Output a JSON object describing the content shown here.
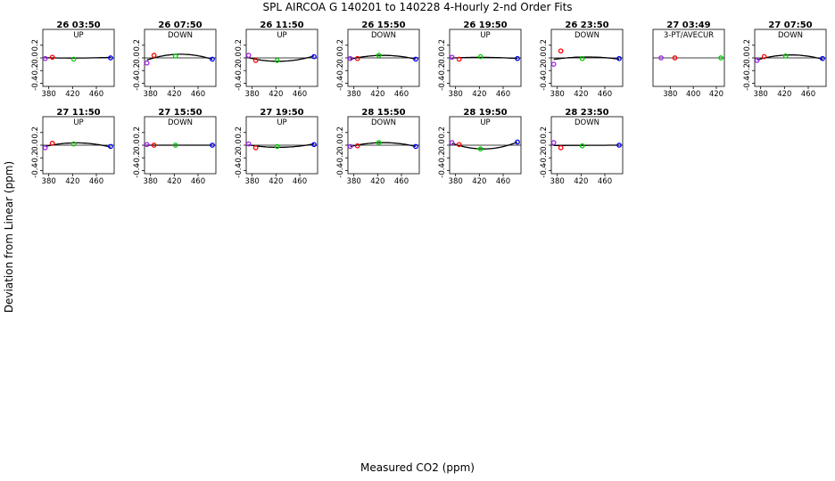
{
  "figure": {
    "title": "SPL   AIRCOA G   140201 to 140228   4-Hourly 2-nd Order Fits",
    "xlabel": "Measured CO2 (ppm)",
    "ylabel": "Deviation from Linear (ppm)"
  },
  "colors": {
    "p1": "#a020f0",
    "p2": "#ff0000",
    "p3": "#00cc00",
    "p4": "#0000ff",
    "curve": "#000000"
  },
  "chart_data": [
    {
      "type": "scatter",
      "title": "26 03:50",
      "subtitle": "UP",
      "xlim": [
        370,
        490
      ],
      "xticks": [
        380,
        420,
        460
      ],
      "ylim": [
        -0.45,
        0.45
      ],
      "yticks": [
        -0.4,
        -0.2,
        0.0,
        0.2
      ],
      "x": [
        374,
        386,
        422,
        484
      ],
      "y": [
        -0.01,
        0.01,
        -0.02,
        0.0
      ],
      "fit": [
        -0.01,
        0.02,
        -0.01,
        0.01
      ]
    },
    {
      "type": "scatter",
      "title": "26 07:50",
      "subtitle": "DOWN",
      "xlim": [
        370,
        490
      ],
      "xticks": [
        380,
        420,
        460
      ],
      "ylim": [
        -0.45,
        0.45
      ],
      "yticks": [
        -0.4,
        -0.2,
        0.0,
        0.2
      ],
      "x": [
        374,
        386,
        422,
        484
      ],
      "y": [
        -0.08,
        0.04,
        0.03,
        -0.02
      ],
      "fit": [
        -0.06,
        0.04,
        0.04,
        -0.02
      ]
    },
    {
      "type": "scatter",
      "title": "26 11:50",
      "subtitle": "UP",
      "xlim": [
        370,
        490
      ],
      "xticks": [
        380,
        420,
        460
      ],
      "ylim": [
        -0.45,
        0.45
      ],
      "yticks": [
        -0.4,
        -0.2,
        0.0,
        0.2
      ],
      "x": [
        374,
        386,
        422,
        484
      ],
      "y": [
        0.04,
        -0.04,
        -0.04,
        0.02
      ],
      "fit": [
        0.01,
        -0.03,
        -0.05,
        0.03
      ]
    },
    {
      "type": "scatter",
      "title": "26 15:50",
      "subtitle": "DOWN",
      "xlim": [
        370,
        490
      ],
      "xticks": [
        380,
        420,
        460
      ],
      "ylim": [
        -0.45,
        0.45
      ],
      "yticks": [
        -0.4,
        -0.2,
        0.0,
        0.2
      ],
      "x": [
        374,
        386,
        422,
        484
      ],
      "y": [
        -0.01,
        -0.01,
        0.04,
        -0.02
      ],
      "fit": [
        -0.02,
        0.0,
        0.04,
        -0.02
      ]
    },
    {
      "type": "scatter",
      "title": "26 19:50",
      "subtitle": "UP",
      "xlim": [
        370,
        490
      ],
      "xticks": [
        380,
        420,
        460
      ],
      "ylim": [
        -0.45,
        0.45
      ],
      "yticks": [
        -0.4,
        -0.2,
        0.0,
        0.2
      ],
      "x": [
        374,
        386,
        422,
        484
      ],
      "y": [
        0.01,
        -0.02,
        0.02,
        -0.01
      ],
      "fit": [
        0.0,
        0.0,
        0.01,
        -0.01
      ]
    },
    {
      "type": "scatter",
      "title": "26 23:50",
      "subtitle": "DOWN",
      "xlim": [
        370,
        490
      ],
      "xticks": [
        380,
        420,
        460
      ],
      "ylim": [
        -0.45,
        0.45
      ],
      "yticks": [
        -0.4,
        -0.2,
        0.0,
        0.2
      ],
      "x": [
        374,
        386,
        422,
        484
      ],
      "y": [
        -0.1,
        0.11,
        -0.01,
        -0.01
      ],
      "fit": [
        -0.03,
        0.0,
        0.01,
        -0.02
      ]
    },
    {
      "type": "scatter",
      "title": "27 03:49",
      "subtitle": "3-PT/AVECUR",
      "xlim": [
        365,
        427
      ],
      "xticks": [
        380,
        400,
        420
      ],
      "ylim": [
        -0.45,
        0.45
      ],
      "yticks": [],
      "x": [
        372,
        384,
        424
      ],
      "y": [
        0.0,
        0.0,
        0.0
      ],
      "fit": []
    },
    {
      "type": "scatter",
      "title": "27 07:50",
      "subtitle": "DOWN",
      "xlim": [
        370,
        490
      ],
      "xticks": [
        380,
        420,
        460
      ],
      "ylim": [
        -0.45,
        0.45
      ],
      "yticks": [
        -0.4,
        -0.2,
        0.0,
        0.2
      ],
      "x": [
        374,
        386,
        422,
        484
      ],
      "y": [
        -0.04,
        0.02,
        0.03,
        -0.01
      ],
      "fit": [
        -0.04,
        0.01,
        0.04,
        -0.02
      ]
    },
    {
      "type": "scatter",
      "title": "27 11:50",
      "subtitle": "UP",
      "xlim": [
        370,
        490
      ],
      "xticks": [
        380,
        420,
        460
      ],
      "ylim": [
        -0.45,
        0.45
      ],
      "yticks": [
        -0.4,
        -0.2,
        0.0,
        0.2
      ],
      "x": [
        374,
        386,
        422,
        484
      ],
      "y": [
        -0.04,
        0.03,
        0.02,
        -0.02
      ],
      "fit": [
        -0.03,
        0.02,
        0.03,
        -0.03
      ]
    },
    {
      "type": "scatter",
      "title": "27 15:50",
      "subtitle": "DOWN",
      "xlim": [
        370,
        490
      ],
      "xticks": [
        380,
        420,
        460
      ],
      "ylim": [
        -0.45,
        0.45
      ],
      "yticks": [
        -0.4,
        -0.2,
        0.0,
        0.2
      ],
      "x": [
        374,
        386,
        422,
        484
      ],
      "y": [
        0.01,
        0.0,
        0.0,
        0.0
      ],
      "fit": [
        0.0,
        0.0,
        0.0,
        0.0
      ]
    },
    {
      "type": "scatter",
      "title": "27 19:50",
      "subtitle": "UP",
      "xlim": [
        370,
        490
      ],
      "xticks": [
        380,
        420,
        460
      ],
      "ylim": [
        -0.45,
        0.45
      ],
      "yticks": [
        -0.4,
        -0.2,
        0.0,
        0.2
      ],
      "x": [
        374,
        386,
        422,
        484
      ],
      "y": [
        0.02,
        -0.04,
        -0.02,
        0.01
      ],
      "fit": [
        0.01,
        -0.02,
        -0.03,
        0.02
      ]
    },
    {
      "type": "scatter",
      "title": "28 15:50",
      "subtitle": "DOWN",
      "xlim": [
        370,
        490
      ],
      "xticks": [
        380,
        420,
        460
      ],
      "ylim": [
        -0.45,
        0.45
      ],
      "yticks": [
        -0.4,
        -0.2,
        0.0,
        0.2
      ],
      "x": [
        374,
        386,
        422,
        484
      ],
      "y": [
        -0.02,
        -0.01,
        0.04,
        -0.02
      ],
      "fit": [
        -0.02,
        0.0,
        0.04,
        -0.02
      ]
    },
    {
      "type": "scatter",
      "title": "28 19:50",
      "subtitle": "UP",
      "xlim": [
        370,
        490
      ],
      "xticks": [
        380,
        420,
        460
      ],
      "ylim": [
        -0.45,
        0.45
      ],
      "yticks": [
        -0.4,
        -0.2,
        0.0,
        0.2
      ],
      "x": [
        374,
        386,
        422,
        484
      ],
      "y": [
        0.04,
        0.01,
        -0.06,
        0.05
      ],
      "fit": [
        0.03,
        0.0,
        -0.06,
        0.05
      ]
    },
    {
      "type": "scatter",
      "title": "28 23:50",
      "subtitle": "DOWN",
      "xlim": [
        370,
        490
      ],
      "xticks": [
        380,
        420,
        460
      ],
      "ylim": [
        -0.45,
        0.45
      ],
      "yticks": [
        -0.4,
        -0.2,
        0.0,
        0.2
      ],
      "x": [
        374,
        386,
        422,
        484
      ],
      "y": [
        0.04,
        -0.04,
        -0.01,
        0.0
      ],
      "fit": [
        0.0,
        -0.01,
        0.0,
        0.0
      ]
    }
  ]
}
